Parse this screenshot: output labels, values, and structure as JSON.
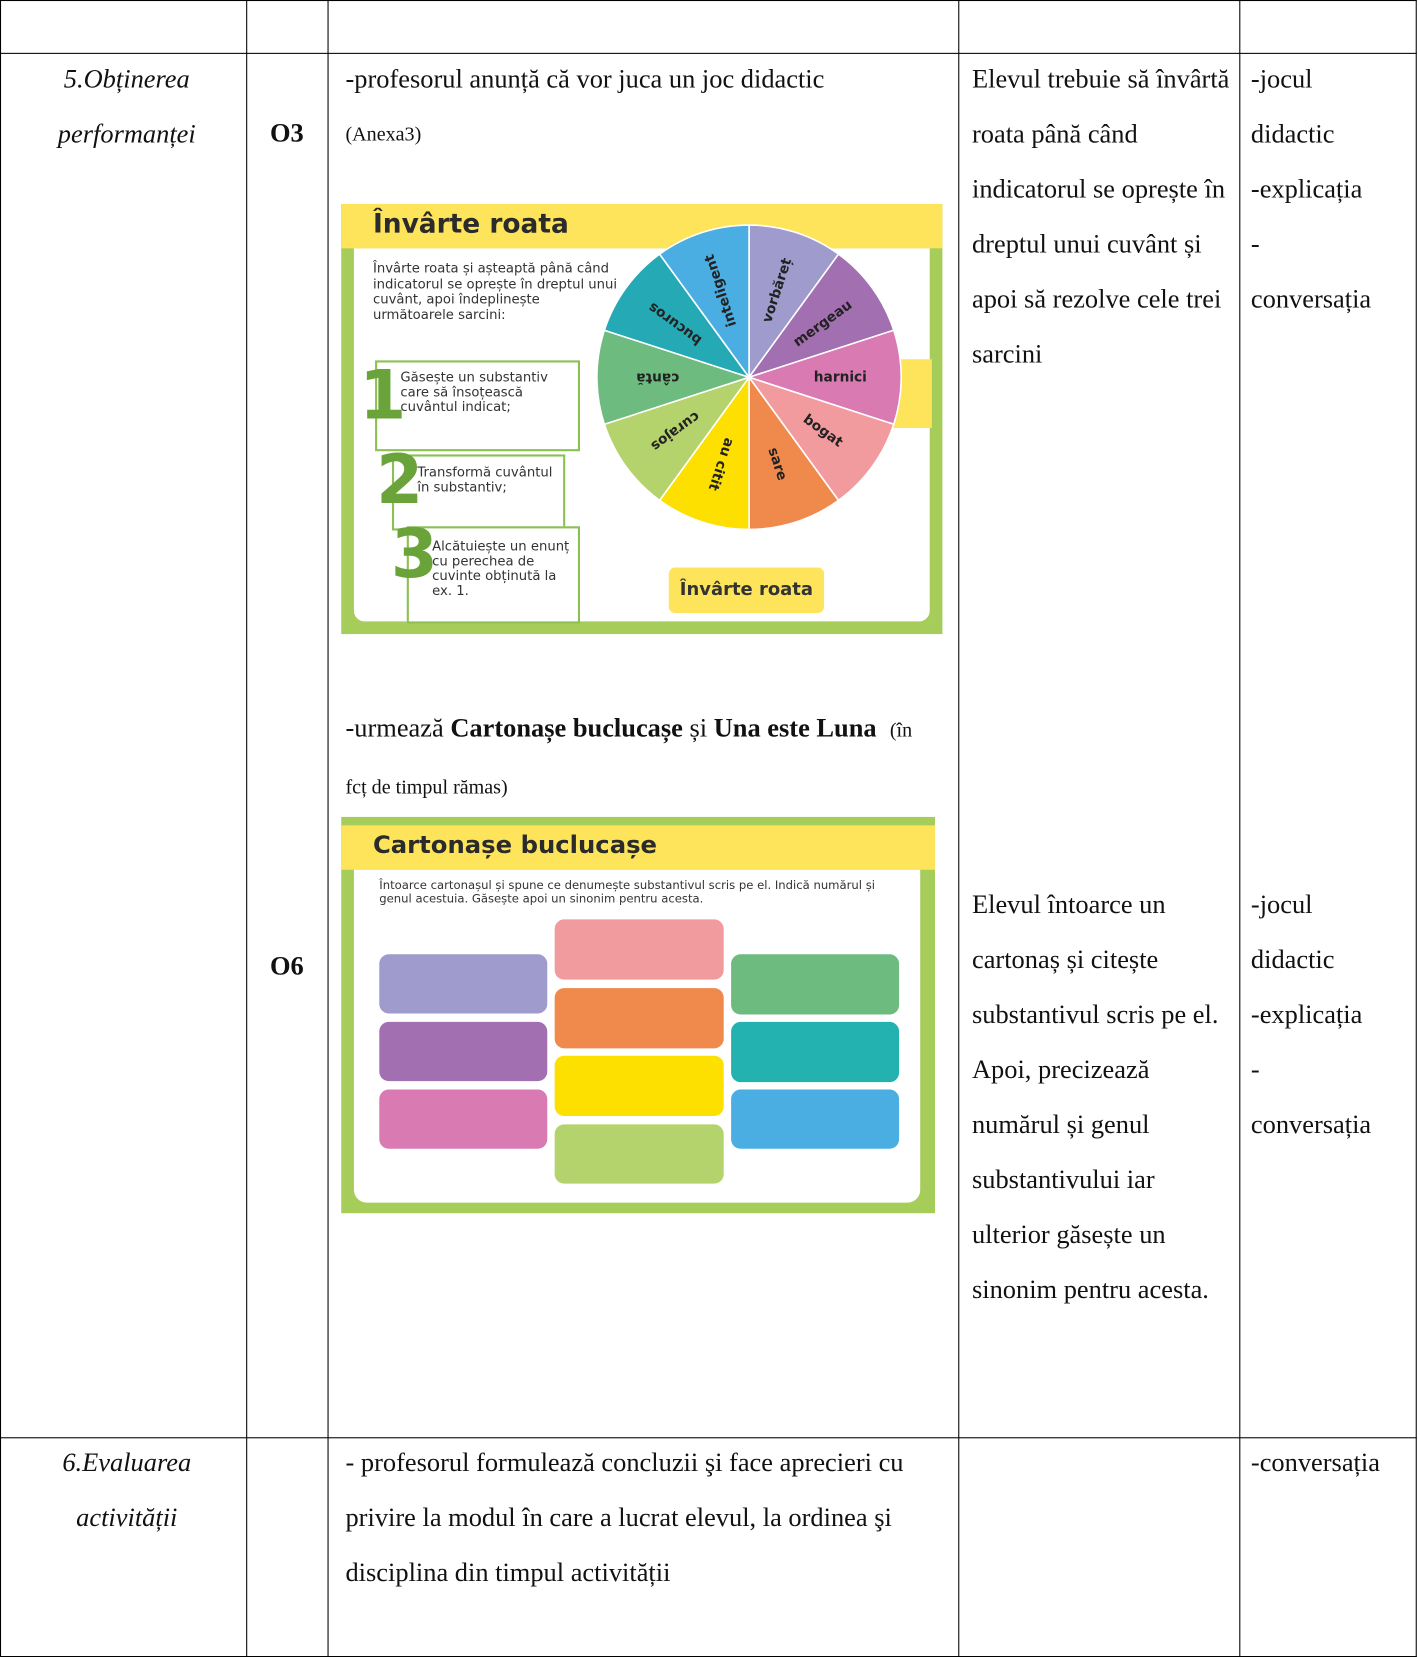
{
  "table": {
    "rows": [
      {
        "stage": "5.Obținerea performanței",
        "objectives": [
          "O3",
          "O6"
        ],
        "content": {
          "intro": "-profesorul anunță că vor juca un joc didactic",
          "annex": "(Anexa3)",
          "slide1": {
            "title": "Învârte roata",
            "instructions": "Învârte roata și așteaptă până când indicatorul se oprește în dreptul unui cuvânt, apoi îndeplinește următoarele sarcini:",
            "tasks": [
              {
                "number": "1",
                "text": "Găsește un substantiv care să însoțească cuvântul indicat;"
              },
              {
                "number": "2",
                "text": "Transformă cuvântul în substantiv;"
              },
              {
                "number": "3",
                "text": "Alcătuiește un enunț cu perechea de cuvinte obținută la ex. 1."
              }
            ],
            "wheel": [
              "vorbăreț",
              "mergeau",
              "harnici",
              "bogat",
              "sare",
              "au citit",
              "curajos",
              "cântă",
              "bucuros",
              "inteligent"
            ],
            "button": "Învârte roata"
          },
          "follow_up": [
            "-urmează ",
            "Cartonașe buclucașe",
            " și ",
            "Una este Luna",
            "(în fcț de timpul rămas)"
          ],
          "slide2": {
            "title": "Cartonașe buclucașe",
            "instructions": "Întoarce cartonașul și spune ce denumește substantivul scris pe el. Indică numărul și genul acestuia. Găsește apoi un sinonim pentru acesta."
          }
        },
        "student": [
          "Elevul trebuie să învârtă roata până când indicatorul se oprește în dreptul unui cuvânt și apoi să rezolve cele trei sarcini",
          "Elevul întoarce un cartonaș și citește substantivul scris pe el. Apoi, precizează numărul și genul substantivului iar ulterior găsește un sinonim pentru acesta."
        ],
        "methods": [
          [
            "-jocul didactic",
            "-explicația",
            "-conversația"
          ],
          [
            "-jocul didactic",
            "-explicația",
            "-conversația"
          ]
        ]
      },
      {
        "stage": "6.Evaluarea activității",
        "content": "- profesorul formulează concluzii şi face aprecieri cu privire la modul în care a lucrat elevul, la ordinea şi disciplina din timpul activității",
        "methods": [
          [
            "-conversația"
          ]
        ]
      }
    ]
  }
}
